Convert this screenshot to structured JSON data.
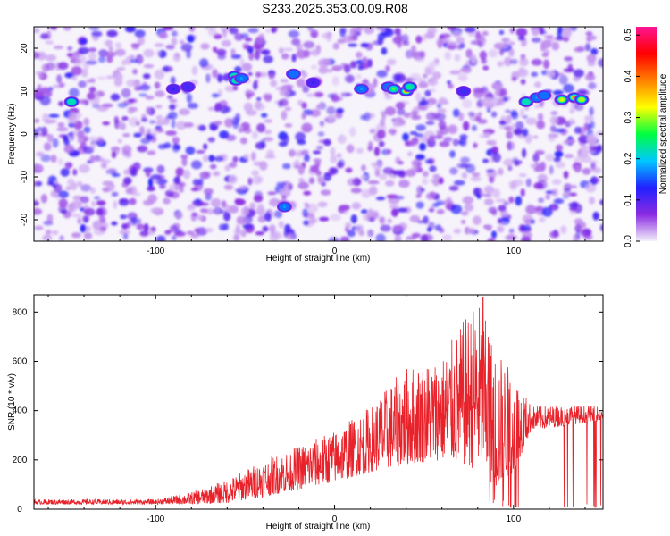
{
  "title": "S233.2025.353.00.09.R08",
  "chart_data": [
    {
      "type": "heatmap",
      "xlabel": "Height of straight line (km)",
      "ylabel": "Frequency (Hz)",
      "xlim": [
        -168,
        150
      ],
      "ylim": [
        -25,
        25
      ],
      "x_ticks": [
        -100,
        0,
        100
      ],
      "y_ticks": [
        -20,
        -10,
        0,
        10,
        20
      ],
      "colorbar": {
        "label": "Normalized spectral amplitude",
        "range": [
          0.0,
          0.52
        ],
        "ticks": [
          "0.0",
          "0.1",
          "0.2",
          "0.3",
          "0.4",
          "0.5"
        ],
        "colors": [
          "#f4f0fb",
          "#8a2be2",
          "#2020ff",
          "#00c8ff",
          "#00ff40",
          "#ffff00",
          "#ff8000",
          "#ff0000",
          "#ff1493"
        ]
      },
      "hotspots": [
        {
          "x": -147,
          "y": 7.5,
          "value": 0.22
        },
        {
          "x": -56,
          "y": 13.5,
          "value": 0.27
        },
        {
          "x": -55,
          "y": 12.5,
          "value": 0.24
        },
        {
          "x": -52,
          "y": 13,
          "value": 0.18
        },
        {
          "x": -90,
          "y": 10.5,
          "value": 0.12
        },
        {
          "x": -82,
          "y": 11,
          "value": 0.14
        },
        {
          "x": -23,
          "y": 14,
          "value": 0.16
        },
        {
          "x": -12,
          "y": 12,
          "value": 0.12
        },
        {
          "x": 15,
          "y": 10.5,
          "value": 0.18
        },
        {
          "x": 30,
          "y": 11,
          "value": 0.2
        },
        {
          "x": 33,
          "y": 10.5,
          "value": 0.28
        },
        {
          "x": 40,
          "y": 10,
          "value": 0.38
        },
        {
          "x": 42,
          "y": 11,
          "value": 0.24
        },
        {
          "x": 72,
          "y": 10,
          "value": 0.14
        },
        {
          "x": 107,
          "y": 7.5,
          "value": 0.22
        },
        {
          "x": 113,
          "y": 8.5,
          "value": 0.18
        },
        {
          "x": 117,
          "y": 9,
          "value": 0.16
        },
        {
          "x": 127,
          "y": 8,
          "value": 0.32
        },
        {
          "x": 134,
          "y": 8.5,
          "value": 0.38
        },
        {
          "x": 138,
          "y": 8,
          "value": 0.3
        },
        {
          "x": -28,
          "y": -17,
          "value": 0.18
        }
      ]
    },
    {
      "type": "line",
      "xlabel": "Height of straight line (km)",
      "ylabel": "SNR (10 * v/v)",
      "xlim": [
        -168,
        150
      ],
      "ylim": [
        0,
        870
      ],
      "x_ticks": [
        -100,
        0,
        100
      ],
      "y_ticks": [
        0,
        200,
        400,
        600,
        800
      ],
      "color": "#e8222a",
      "envelope": {
        "x": [
          -168,
          -100,
          -80,
          -60,
          -40,
          -20,
          0,
          20,
          40,
          60,
          80,
          90,
          100,
          110,
          150
        ],
        "y_low": [
          20,
          20,
          20,
          25,
          50,
          80,
          110,
          150,
          180,
          200,
          160,
          80,
          150,
          320,
          360
        ],
        "y_high": [
          40,
          40,
          70,
          120,
          200,
          260,
          320,
          420,
          580,
          620,
          860,
          650,
          560,
          420,
          420
        ]
      },
      "peak": {
        "x": 83,
        "y": 860
      }
    }
  ]
}
